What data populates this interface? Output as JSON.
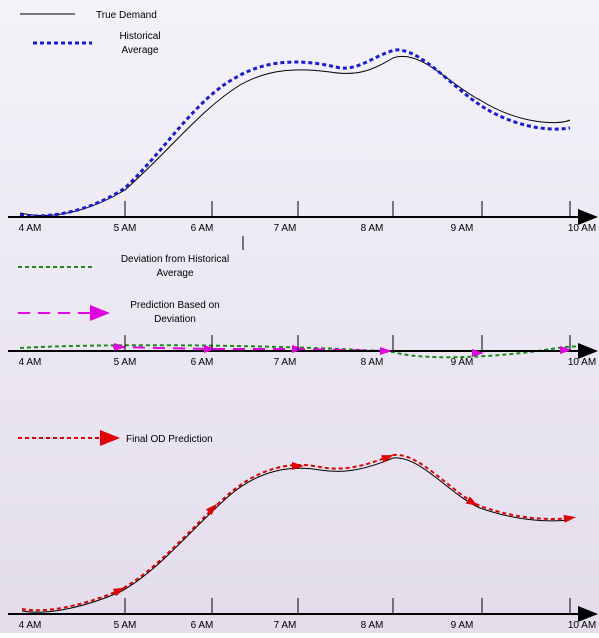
{
  "panels": [
    {
      "legend": [
        "True Demand",
        "Historical Average"
      ],
      "ticks": [
        "4 AM",
        "5 AM",
        "6 AM",
        "7 AM",
        "8 AM",
        "9 AM",
        "10 AM"
      ]
    },
    {
      "legend": [
        "Deviation from Historical Average",
        "Prediction Based on Deviation"
      ],
      "ticks": [
        "4 AM",
        "5 AM",
        "6 AM",
        "7 AM",
        "8 AM",
        "9 AM",
        "10 AM"
      ]
    },
    {
      "legend": [
        "Final OD Prediction"
      ],
      "ticks": [
        "4 AM",
        "5 AM",
        "6 AM",
        "7 AM",
        "8 AM",
        "9 AM",
        "10 AM"
      ]
    }
  ]
}
